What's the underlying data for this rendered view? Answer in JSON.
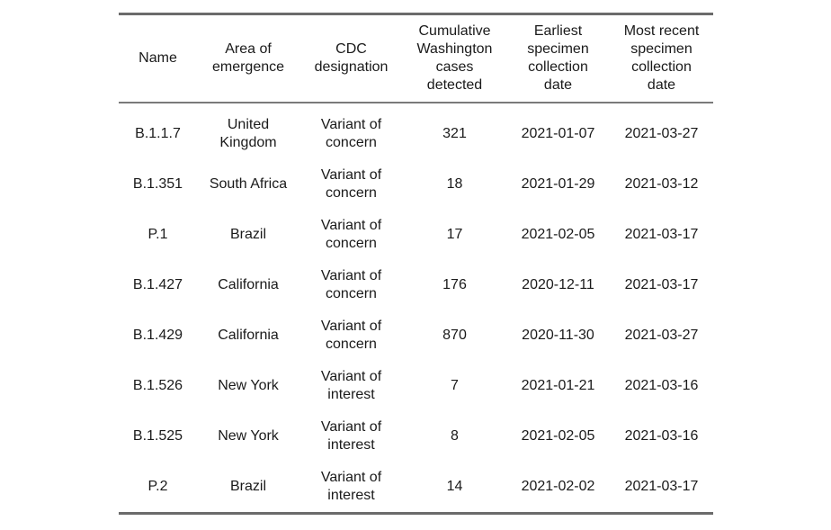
{
  "table": {
    "headers": [
      "Name",
      "Area of\nemergence",
      "CDC\ndesignation",
      "Cumulative\nWashington\ncases\ndetected",
      "Earliest\nspecimen\ncollection\ndate",
      "Most recent\nspecimen\ncollection\ndate"
    ],
    "rows": [
      [
        "B.1.1.7",
        "United\nKingdom",
        "Variant of\nconcern",
        "321",
        "2021-01-07",
        "2021-03-27"
      ],
      [
        "B.1.351",
        "South Africa",
        "Variant of\nconcern",
        "18",
        "2021-01-29",
        "2021-03-12"
      ],
      [
        "P.1",
        "Brazil",
        "Variant of\nconcern",
        "17",
        "2021-02-05",
        "2021-03-17"
      ],
      [
        "B.1.427",
        "California",
        "Variant of\nconcern",
        "176",
        "2020-12-11",
        "2021-03-17"
      ],
      [
        "B.1.429",
        "California",
        "Variant of\nconcern",
        "870",
        "2020-11-30",
        "2021-03-27"
      ],
      [
        "B.1.526",
        "New York",
        "Variant of\ninterest",
        "7",
        "2021-01-21",
        "2021-03-16"
      ],
      [
        "B.1.525",
        "New York",
        "Variant of\ninterest",
        "8",
        "2021-02-05",
        "2021-03-16"
      ],
      [
        "P.2",
        "Brazil",
        "Variant of\ninterest",
        "14",
        "2021-02-02",
        "2021-03-17"
      ]
    ]
  },
  "colors": {
    "rule": "#6b6b6b",
    "text": "#1a1a1a"
  }
}
